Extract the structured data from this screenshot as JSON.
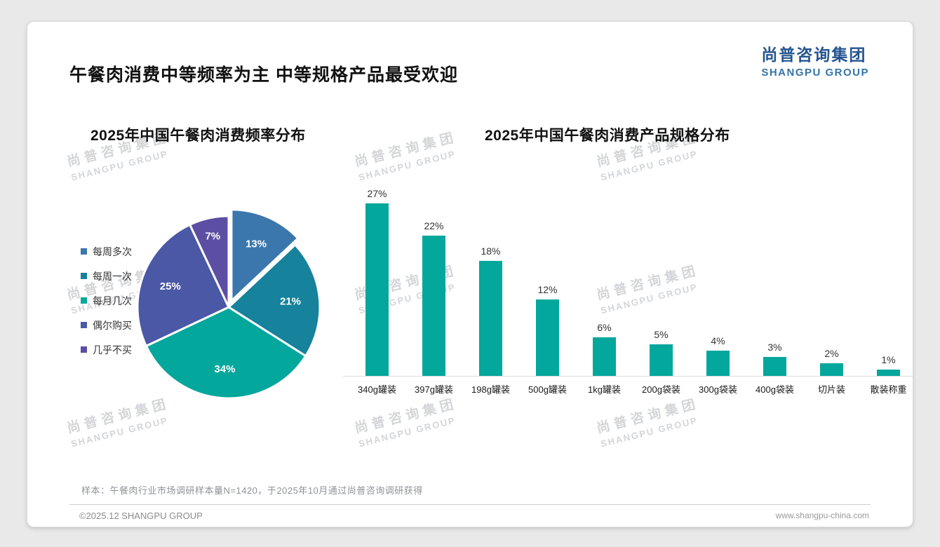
{
  "page": {
    "title": "午餐肉消费中等频率为主 中等规格产品最受欢迎",
    "logo": {
      "cn": "尚普咨询集团",
      "en": "SHANGPU GROUP"
    },
    "watermark": {
      "cn": "尚普咨询集团",
      "en": "SHANGPU GROUP"
    },
    "footer_note": "样本：午餐肉行业市场调研样本量N=1420，于2025年10月通过尚普咨询调研获得",
    "footer_left": "©2025.12 SHANGPU GROUP",
    "footer_right": "www.shangpu-china.com"
  },
  "colors": {
    "logo_blue": "#24548e",
    "bar_teal": "#04a79c",
    "card_bg": "#ffffff",
    "page_bg": "#e9e9e9"
  },
  "chart_data": [
    {
      "type": "pie",
      "title": "2025年中国午餐肉消费频率分布",
      "labels": [
        "每周多次",
        "每周一次",
        "每月几次",
        "偶尔购买",
        "几乎不买"
      ],
      "values": [
        13,
        21,
        34,
        25,
        7
      ],
      "value_suffix": "%",
      "colors": [
        "#3b77ad",
        "#16829b",
        "#04a79c",
        "#4a58a5",
        "#5c4ea3"
      ],
      "legend_position": "left",
      "start_angle_deg": 0,
      "direction": "clockwise",
      "exploded_index": 0
    },
    {
      "type": "bar",
      "title": "2025年中国午餐肉消费产品规格分布",
      "categories": [
        "340g罐装",
        "397g罐装",
        "198g罐装",
        "500g罐装",
        "1kg罐装",
        "200g袋装",
        "300g袋装",
        "400g袋装",
        "切片装",
        "散装称重"
      ],
      "values": [
        27,
        22,
        18,
        12,
        6,
        5,
        4,
        3,
        2,
        1
      ],
      "value_suffix": "%",
      "bar_color": "#04a79c",
      "ylim": [
        0,
        30
      ],
      "grid": false,
      "value_labels": "above"
    }
  ]
}
